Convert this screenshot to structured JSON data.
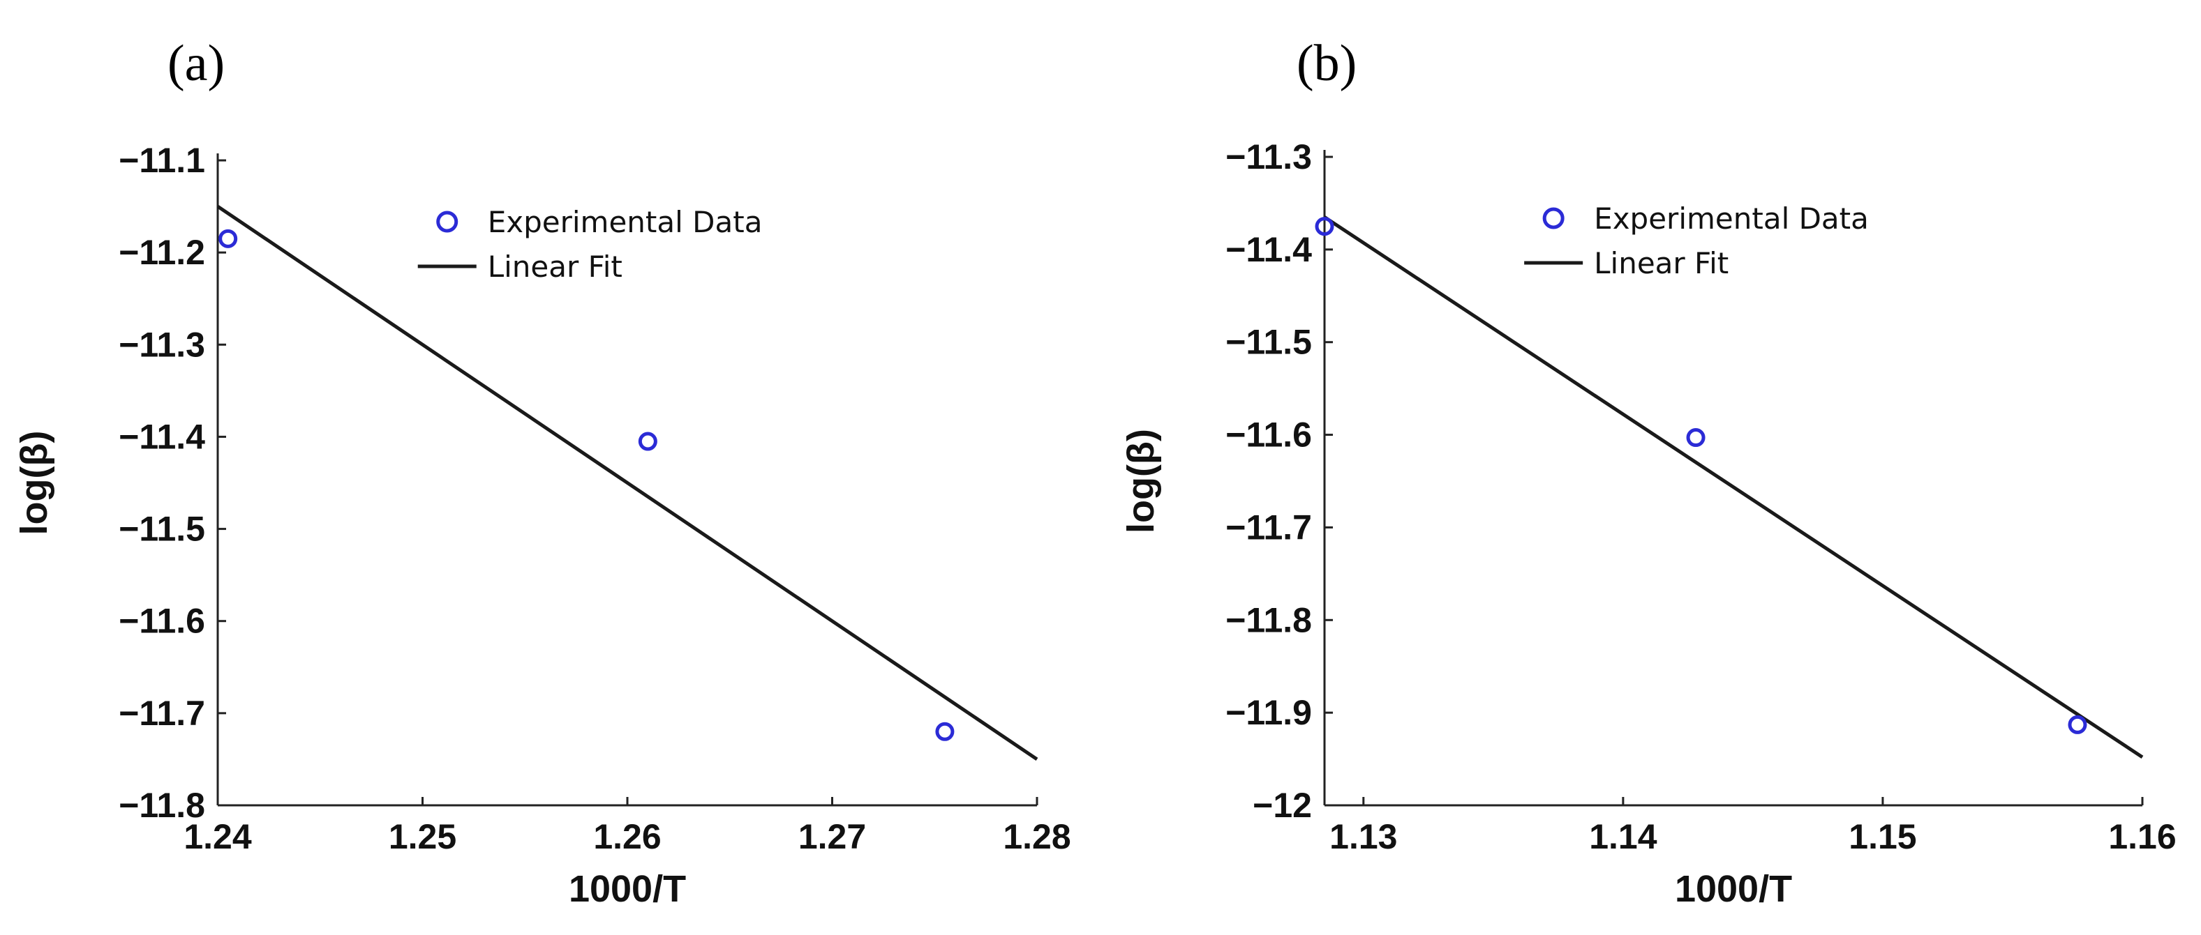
{
  "chart_data": [
    {
      "panel": "(a)",
      "type": "scatter",
      "xlabel": "1000/T",
      "ylabel": "log(β)",
      "xlim": [
        1.24,
        1.28
      ],
      "ylim": [
        -11.8,
        -11.1
      ],
      "xticks": [
        1.24,
        1.25,
        1.26,
        1.27,
        1.28
      ],
      "xtick_labels": [
        "1.24",
        "1.25",
        "1.26",
        "1.27",
        "1.28"
      ],
      "yticks": [
        -11.1,
        -11.2,
        -11.3,
        -11.4,
        -11.5,
        -11.6,
        -11.7,
        -11.8
      ],
      "ytick_labels": [
        "−11.1",
        "−11.2",
        "−11.3",
        "−11.4",
        "−11.5",
        "−11.6",
        "−11.7",
        "−11.8"
      ],
      "grid": false,
      "legend_position": "top-right",
      "series": [
        {
          "name": "Experimental Data",
          "kind": "markers",
          "marker": "circle-open",
          "color": "#2b2bd6",
          "x": [
            1.2405,
            1.261,
            1.2755
          ],
          "y": [
            -11.185,
            -11.405,
            -11.72
          ]
        },
        {
          "name": "Linear Fit",
          "kind": "line",
          "color": "#1a1a1a",
          "x": [
            1.24,
            1.28
          ],
          "y": [
            -11.15,
            -11.75
          ]
        }
      ]
    },
    {
      "panel": "(b)",
      "type": "scatter",
      "xlabel": "1000/T",
      "ylabel": "log(β)",
      "xlim": [
        1.1285,
        1.16
      ],
      "ylim": [
        -12.0,
        -11.3
      ],
      "xticks": [
        1.13,
        1.14,
        1.15,
        1.16
      ],
      "xtick_labels": [
        "1.13",
        "1.14",
        "1.15",
        "1.16"
      ],
      "yticks": [
        -11.3,
        -11.4,
        -11.5,
        -11.6,
        -11.7,
        -11.8,
        -11.9,
        -12.0
      ],
      "ytick_labels": [
        "−11.3",
        "−11.4",
        "−11.5",
        "−11.6",
        "−11.7",
        "−11.8",
        "−11.9",
        "−12"
      ],
      "grid": false,
      "legend_position": "top-right",
      "series": [
        {
          "name": "Experimental Data",
          "kind": "markers",
          "marker": "circle-open",
          "color": "#2b2bd6",
          "x": [
            1.1285,
            1.1428,
            1.1575
          ],
          "y": [
            -11.375,
            -11.603,
            -11.913
          ]
        },
        {
          "name": "Linear Fit",
          "kind": "line",
          "color": "#1a1a1a",
          "x": [
            1.1285,
            1.16
          ],
          "y": [
            -11.365,
            -11.948
          ]
        }
      ]
    }
  ]
}
